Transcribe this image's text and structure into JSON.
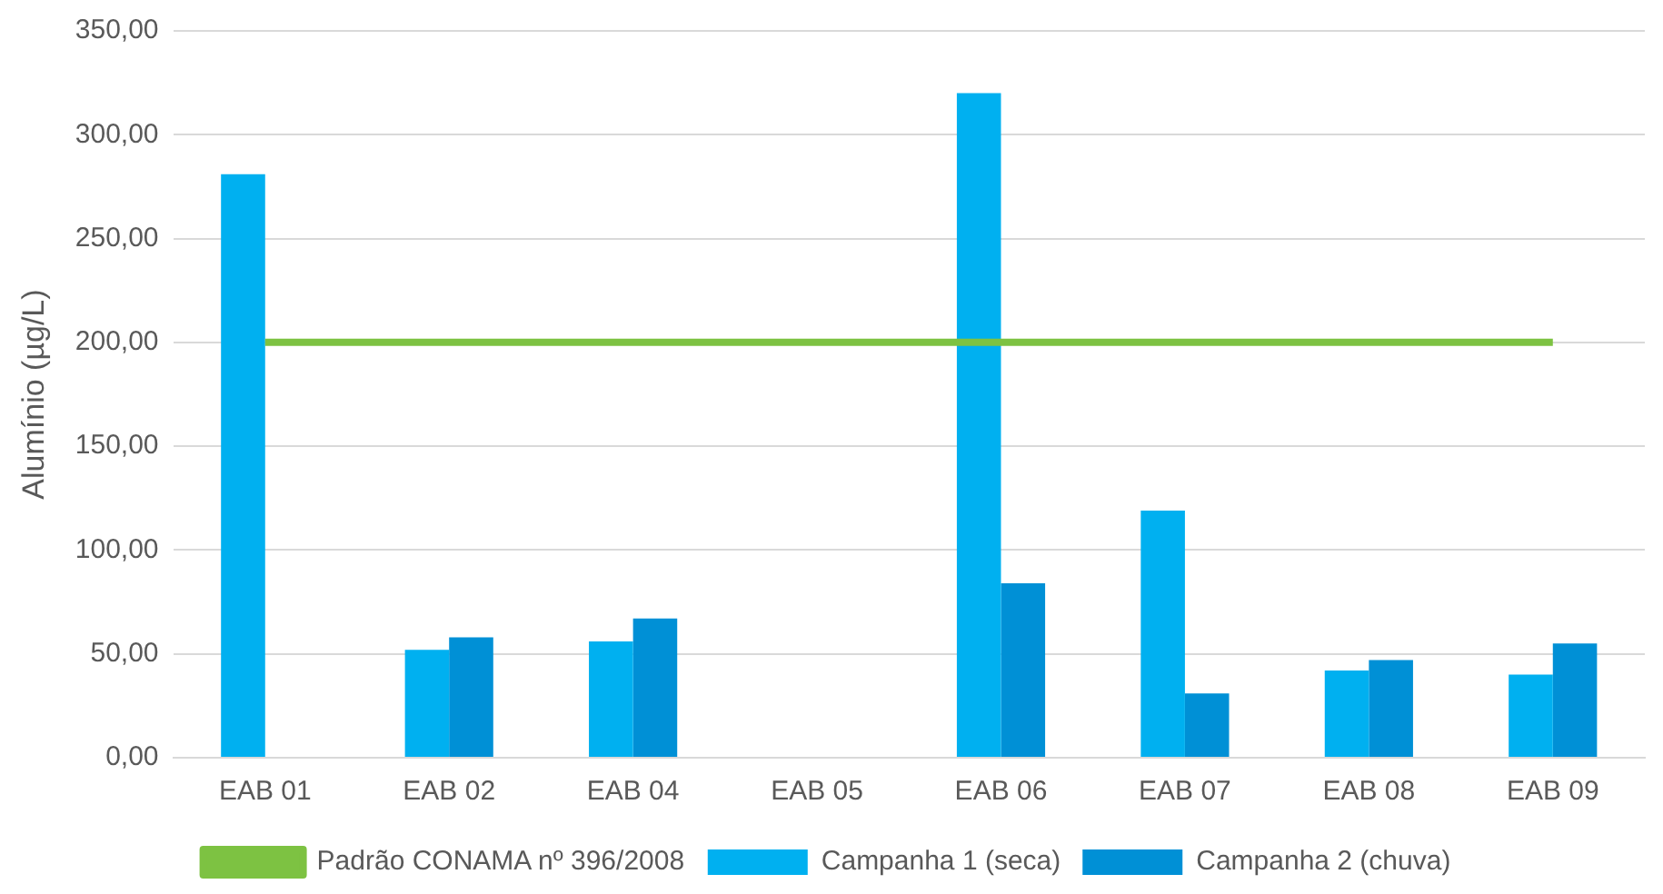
{
  "chart_data": {
    "type": "bar",
    "ylabel": "Alumínio (µg/L)",
    "categories": [
      "EAB 01",
      "EAB 02",
      "EAB 04",
      "EAB 05",
      "EAB 06",
      "EAB 07",
      "EAB 08",
      "EAB 09"
    ],
    "series": [
      {
        "name": "Campanha 1 (seca)",
        "color": "#00b0f0",
        "values": [
          281,
          52,
          56,
          null,
          320,
          119,
          42,
          40
        ]
      },
      {
        "name": "Campanha 2 (chuva)",
        "color": "#0090d6",
        "values": [
          null,
          58,
          67,
          null,
          84,
          31,
          47,
          55
        ]
      },
      {
        "name": "Padrão CONAMA nº 396/2008",
        "type": "line",
        "color": "#7dc242",
        "values": [
          200,
          200,
          200,
          200,
          200,
          200,
          200,
          200
        ]
      }
    ],
    "ylim": [
      0,
      350
    ],
    "yticks": [
      {
        "value": 0,
        "label": "0,00"
      },
      {
        "value": 50,
        "label": "50,00"
      },
      {
        "value": 100,
        "label": "100,00"
      },
      {
        "value": 150,
        "label": "150,00"
      },
      {
        "value": 200,
        "label": "200,00"
      },
      {
        "value": 250,
        "label": "250,00"
      },
      {
        "value": 300,
        "label": "300,00"
      },
      {
        "value": 350,
        "label": "350,00"
      }
    ],
    "grid": "y",
    "legend": "bottom",
    "marker": "none"
  }
}
